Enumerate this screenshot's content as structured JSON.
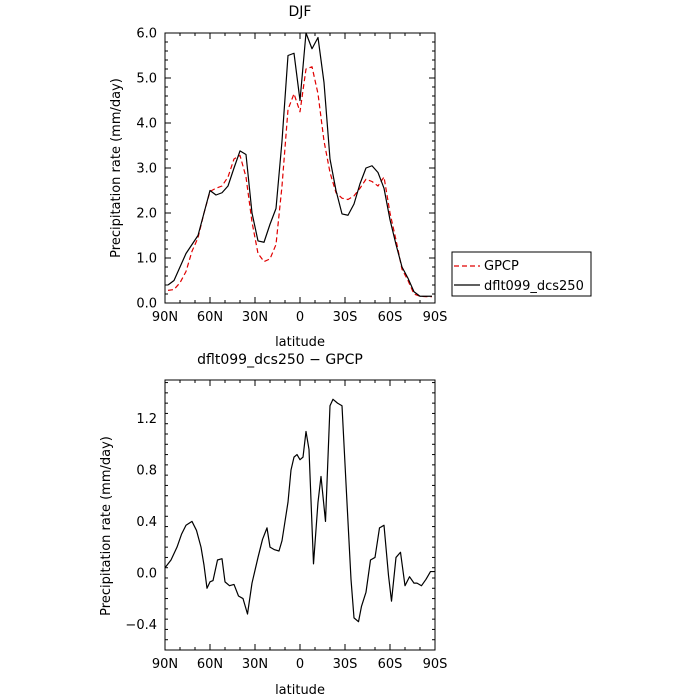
{
  "chart_data": [
    {
      "type": "line",
      "title": "DJF",
      "xlabel": "latitude",
      "ylabel": "Precipitation rate (mm/day)",
      "xlim": [
        90,
        -90
      ],
      "ylim": [
        0,
        6
      ],
      "x_tick_values": [
        90,
        60,
        30,
        0,
        -30,
        -60,
        -90
      ],
      "x_tick_labels": [
        "90N",
        "60N",
        "30N",
        "0",
        "30S",
        "60S",
        "90S"
      ],
      "y_tick_values": [
        0,
        1,
        2,
        3,
        4,
        5,
        6
      ],
      "y_tick_labels": [
        "0.0",
        "1.0",
        "2.0",
        "3.0",
        "4.0",
        "5.0",
        "6.0"
      ],
      "legend": {
        "placement": "right",
        "entries": [
          "GPCP",
          "dflt099_dcs250"
        ]
      },
      "series": [
        {
          "name": "GPCP",
          "color": "#e00000",
          "dash": "dashed",
          "x": [
            88,
            84,
            80,
            76,
            72,
            68,
            64,
            60,
            56,
            52,
            48,
            44,
            40,
            36,
            32,
            28,
            24,
            20,
            16,
            12,
            8,
            4,
            0,
            -4,
            -8,
            -12,
            -16,
            -20,
            -24,
            -28,
            -32,
            -36,
            -40,
            -44,
            -48,
            -52,
            -56,
            -60,
            -64,
            -68,
            -72,
            -76,
            -80,
            -84,
            -88
          ],
          "values": [
            0.28,
            0.3,
            0.45,
            0.7,
            1.15,
            1.45,
            2.0,
            2.48,
            2.55,
            2.6,
            2.8,
            3.2,
            3.28,
            2.8,
            1.8,
            1.1,
            0.92,
            0.98,
            1.3,
            2.6,
            4.3,
            4.65,
            4.25,
            5.2,
            5.25,
            4.65,
            3.6,
            2.9,
            2.45,
            2.33,
            2.3,
            2.38,
            2.55,
            2.75,
            2.7,
            2.6,
            2.8,
            2.0,
            1.4,
            0.75,
            0.5,
            0.2,
            0.15,
            0.14,
            0.14
          ]
        },
        {
          "name": "dflt099_dcs250",
          "color": "#000000",
          "dash": "solid",
          "x": [
            88,
            84,
            80,
            76,
            72,
            68,
            64,
            60,
            56,
            52,
            48,
            44,
            40,
            36,
            32,
            28,
            24,
            20,
            16,
            12,
            8,
            4,
            0,
            -4,
            -8,
            -12,
            -16,
            -20,
            -24,
            -28,
            -32,
            -36,
            -40,
            -44,
            -48,
            -52,
            -56,
            -60,
            -64,
            -68,
            -72,
            -76,
            -80,
            -84,
            -88
          ],
          "values": [
            0.4,
            0.5,
            0.8,
            1.1,
            1.3,
            1.5,
            2.0,
            2.5,
            2.4,
            2.45,
            2.6,
            3.0,
            3.38,
            3.3,
            2.0,
            1.38,
            1.35,
            1.75,
            2.1,
            3.6,
            5.5,
            5.55,
            4.5,
            6.0,
            5.65,
            5.9,
            4.9,
            3.2,
            2.5,
            1.98,
            1.95,
            2.2,
            2.65,
            3.0,
            3.05,
            2.9,
            2.55,
            1.85,
            1.3,
            0.8,
            0.55,
            0.25,
            0.15,
            0.15,
            0.15
          ]
        }
      ]
    },
    {
      "type": "line",
      "title": "dflt099_dcs250 − GPCP",
      "xlabel": "latitude",
      "ylabel": "Precipitation rate (mm/day)",
      "xlim": [
        90,
        -90
      ],
      "ylim": [
        -0.6,
        1.5
      ],
      "x_tick_values": [
        90,
        60,
        30,
        0,
        -30,
        -60,
        -90
      ],
      "x_tick_labels": [
        "90N",
        "60N",
        "30N",
        "0",
        "30S",
        "60S",
        "90S"
      ],
      "y_tick_values": [
        -0.4,
        0,
        0.4,
        0.8,
        1.2
      ],
      "y_tick_labels": [
        "−0.4",
        "0.0",
        "0.4",
        "0.8",
        "1.2"
      ],
      "series": [
        {
          "color": "#000000",
          "dash": "solid",
          "x": [
            90,
            86,
            82,
            79,
            76,
            72,
            69,
            66,
            64,
            62,
            60,
            58,
            55,
            52,
            50,
            47,
            44,
            41,
            38,
            35,
            32,
            28,
            25,
            22,
            20,
            17,
            14,
            12,
            10,
            8,
            6,
            4,
            2,
            0,
            -2,
            -4,
            -6,
            -9,
            -12,
            -14,
            -17,
            -20,
            -22,
            -25,
            -28,
            -31,
            -34,
            -36,
            -39,
            -41,
            -44,
            -47,
            -50,
            -53,
            -56,
            -59,
            -61,
            -64,
            -67,
            -70,
            -73,
            -76,
            -78,
            -81,
            -84,
            -87,
            -90
          ],
          "values": [
            0.04,
            0.1,
            0.2,
            0.3,
            0.37,
            0.4,
            0.33,
            0.2,
            0.06,
            -0.12,
            -0.07,
            -0.06,
            0.1,
            0.11,
            -0.07,
            -0.1,
            -0.09,
            -0.18,
            -0.2,
            -0.32,
            -0.08,
            0.12,
            0.26,
            0.35,
            0.2,
            0.18,
            0.17,
            0.25,
            0.4,
            0.55,
            0.8,
            0.9,
            0.92,
            0.88,
            0.9,
            1.1,
            0.96,
            0.07,
            0.55,
            0.75,
            0.4,
            1.3,
            1.35,
            1.32,
            1.3,
            0.62,
            -0.05,
            -0.35,
            -0.38,
            -0.26,
            -0.15,
            0.1,
            0.12,
            0.35,
            0.37,
            -0.02,
            -0.22,
            0.12,
            0.16,
            -0.1,
            -0.03,
            -0.08,
            -0.08,
            -0.1,
            -0.05,
            0.01,
            0.01
          ]
        }
      ]
    }
  ]
}
